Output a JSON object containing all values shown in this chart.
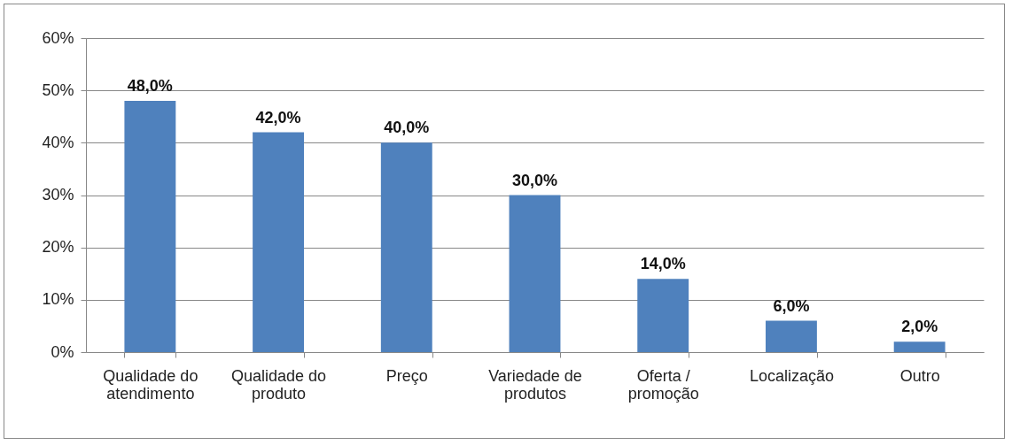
{
  "chart_data": {
    "type": "bar",
    "categories": [
      "Qualidade do atendimento",
      "Qualidade do produto",
      "Preço",
      "Variedade de produtos",
      "Oferta / promoção",
      "Localização",
      "Outro"
    ],
    "values": [
      48,
      42,
      40,
      30,
      14,
      6,
      2
    ],
    "value_labels": [
      "48,0%",
      "42,0%",
      "40,0%",
      "30,0%",
      "14,0%",
      "6,0%",
      "2,0%"
    ],
    "color": "#4f81bd",
    "ylim": [
      0,
      60
    ],
    "yticks": [
      {
        "value": 0,
        "label": "0%"
      },
      {
        "value": 10,
        "label": "10%"
      },
      {
        "value": 20,
        "label": "20%"
      },
      {
        "value": 30,
        "label": "30%"
      },
      {
        "value": 40,
        "label": "40%"
      },
      {
        "value": 50,
        "label": "50%"
      },
      {
        "value": 60,
        "label": "60%"
      }
    ],
    "grid": "y"
  }
}
